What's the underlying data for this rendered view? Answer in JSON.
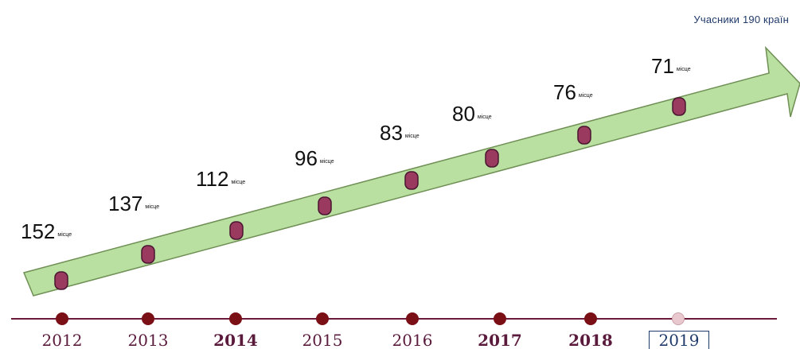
{
  "caption": "Учасники 190 країн",
  "colors": {
    "arrow_fill": "#b9e0a0",
    "arrow_stroke": "#6f8f55",
    "marker_fill": "#9a3a5e",
    "marker_stroke": "#4a1530",
    "timeline_line": "#6b1a3a",
    "timeline_dot": "#7a0f16",
    "timeline_dot_last": "#e9c9cf",
    "year_text": "#5a1a3c"
  },
  "items": [
    {
      "year": "2012",
      "rank": "152",
      "unit": "місце",
      "bold": false,
      "boxed": false
    },
    {
      "year": "2013",
      "rank": "137",
      "unit": "місце",
      "bold": false,
      "boxed": false
    },
    {
      "year": "2014",
      "rank": "112",
      "unit": "місце",
      "bold": true,
      "boxed": false
    },
    {
      "year": "2015",
      "rank": "96",
      "unit": "місце",
      "bold": false,
      "boxed": false
    },
    {
      "year": "2016",
      "rank": "83",
      "unit": "місце",
      "bold": false,
      "boxed": false
    },
    {
      "year": "2017",
      "rank": "80",
      "unit": "місце",
      "bold": true,
      "boxed": false
    },
    {
      "year": "2018",
      "rank": "76",
      "unit": "місце",
      "bold": true,
      "boxed": false
    },
    {
      "year": "2019",
      "rank": "71",
      "unit": "місце",
      "bold": false,
      "boxed": true
    }
  ]
}
